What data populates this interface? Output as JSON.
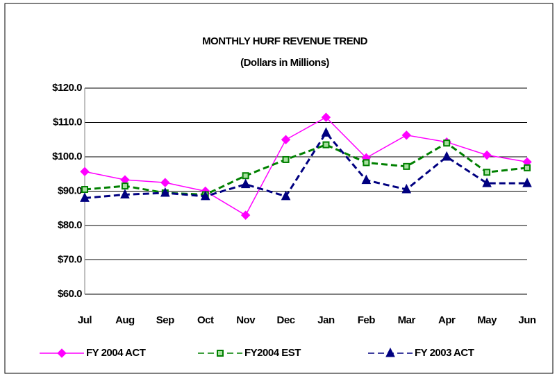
{
  "chart_data": {
    "type": "line",
    "title": "MONTHLY HURF REVENUE TREND",
    "subtitle": "(Dollars in Millions)",
    "categories": [
      "Jul",
      "Aug",
      "Sep",
      "Oct",
      "Nov",
      "Dec",
      "Jan",
      "Feb",
      "Mar",
      "Apr",
      "May",
      "Jun"
    ],
    "series": [
      {
        "name": "FY 2004 ACT",
        "color": "#ff00ff",
        "marker": "diamond",
        "dashed": false,
        "values": [
          95.7,
          93.3,
          92.5,
          90.0,
          83.0,
          105.0,
          111.5,
          99.7,
          106.3,
          104.3,
          100.5,
          98.5
        ]
      },
      {
        "name": "FY2004 EST",
        "color": "#008000",
        "marker": "square",
        "dashed": true,
        "values": [
          90.5,
          91.5,
          89.5,
          89.0,
          94.5,
          99.2,
          103.5,
          98.3,
          97.2,
          104.0,
          95.5,
          96.8
        ]
      },
      {
        "name": "FY 2003 ACT",
        "color": "#000080",
        "marker": "triangle",
        "dashed": true,
        "values": [
          88.0,
          89.0,
          89.5,
          88.5,
          92.0,
          88.5,
          107.0,
          93.2,
          90.5,
          100.0,
          92.3,
          92.3
        ]
      }
    ],
    "ylim": [
      60,
      120
    ],
    "yticks": [
      {
        "value": 60,
        "label": "$60.0"
      },
      {
        "value": 70,
        "label": "$70.0"
      },
      {
        "value": 80,
        "label": "$80.0"
      },
      {
        "value": 90,
        "label": "$90.0"
      },
      {
        "value": 100,
        "label": "$100.0"
      },
      {
        "value": 110,
        "label": "$110.0"
      },
      {
        "value": 120,
        "label": "$120.0"
      }
    ],
    "grid": true,
    "legend": "bottom"
  }
}
